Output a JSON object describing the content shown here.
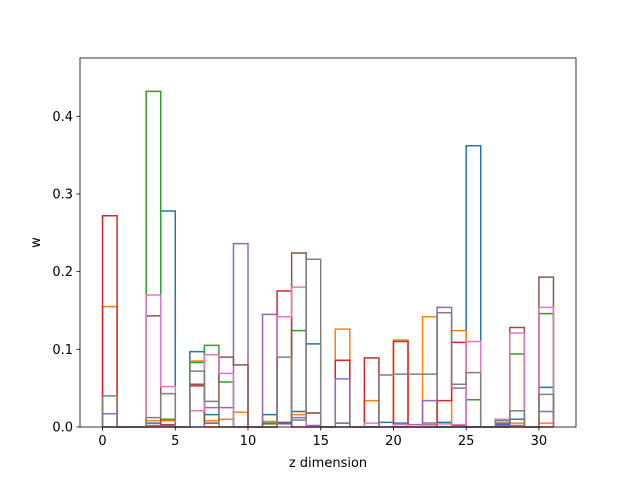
{
  "chart_data": {
    "type": "histogram-step",
    "title": "",
    "xlabel": "z dimension",
    "ylabel": "w",
    "xlim": [
      -1.55,
      32.55
    ],
    "ylim": [
      0,
      0.475
    ],
    "x_ticks": [
      0,
      5,
      10,
      15,
      20,
      25,
      30
    ],
    "y_ticks": [
      0.0,
      0.1,
      0.2,
      0.3,
      0.4
    ],
    "y_tick_labels": [
      "0.0",
      "0.1",
      "0.2",
      "0.3",
      "0.4"
    ],
    "grid": false,
    "legend": "none",
    "bin_edges": [
      0,
      1,
      2,
      3,
      4,
      5,
      6,
      7,
      8,
      9,
      10,
      11,
      12,
      13,
      14,
      15,
      16,
      17,
      18,
      19,
      20,
      21,
      22,
      23,
      24,
      25,
      26,
      27,
      28,
      29,
      30,
      31
    ],
    "series": [
      {
        "color": "#1f77b4",
        "values": [
          0,
          0,
          0,
          0.005,
          0.278,
          0,
          0.097,
          0.016,
          0.01,
          0,
          0,
          0.016,
          0.006,
          0.02,
          0.107,
          0,
          0.005,
          0,
          0,
          0.006,
          0.005,
          0,
          0.003,
          0.006,
          0.002,
          0.362,
          0,
          0.003,
          0.01,
          0,
          0.051
        ]
      },
      {
        "color": "#ff7f0e",
        "values": [
          0.155,
          0,
          0,
          0.008,
          0.008,
          0,
          0.085,
          0.008,
          0.01,
          0.019,
          0,
          0.007,
          0.142,
          0.016,
          0.018,
          0,
          0.126,
          0,
          0.034,
          0,
          0.112,
          0,
          0.142,
          0,
          0.124,
          0,
          0,
          0,
          0.005,
          0,
          0.005
        ]
      },
      {
        "color": "#2ca02c",
        "values": [
          0,
          0,
          0,
          0.432,
          0.01,
          0,
          0.083,
          0.105,
          0.058,
          0,
          0,
          0.005,
          0.005,
          0.124,
          0,
          0,
          0,
          0,
          0,
          0,
          0,
          0,
          0,
          0,
          0,
          0.035,
          0,
          0,
          0.094,
          0,
          0.146
        ]
      },
      {
        "color": "#d62728",
        "values": [
          0.272,
          0,
          0,
          0,
          0,
          0,
          0.053,
          0,
          0,
          0,
          0,
          0,
          0.175,
          0,
          0,
          0,
          0.086,
          0,
          0.089,
          0,
          0.11,
          0,
          0,
          0.034,
          0.109,
          0,
          0,
          0,
          0,
          0,
          0
        ]
      },
      {
        "color": "#9467bd",
        "values": [
          0.017,
          0,
          0,
          0.002,
          0.002,
          0,
          0,
          0.025,
          0.025,
          0.236,
          0,
          0.145,
          0.004,
          0.012,
          0.002,
          0,
          0.062,
          0,
          0,
          0,
          0,
          0.003,
          0.034,
          0.154,
          0.05,
          0,
          0,
          0.002,
          0.002,
          0,
          0.02
        ]
      },
      {
        "color": "#8c564b",
        "values": [
          0,
          0,
          0,
          0.143,
          0.003,
          0,
          0.055,
          0.005,
          0.09,
          0.08,
          0,
          0.004,
          0.005,
          0.224,
          0.018,
          0,
          0,
          0,
          0,
          0,
          0,
          0,
          0.005,
          0,
          0,
          0,
          0,
          0.005,
          0.128,
          0,
          0.193
        ]
      },
      {
        "color": "#e377c2",
        "values": [
          0,
          0,
          0,
          0.17,
          0.052,
          0,
          0.021,
          0.093,
          0.069,
          0,
          0,
          0,
          0.142,
          0.18,
          0,
          0,
          0,
          0,
          0.005,
          0,
          0.003,
          0,
          0.004,
          0.004,
          0.003,
          0.11,
          0,
          0.01,
          0.121,
          0,
          0.154
        ]
      },
      {
        "color": "#7f7f7f",
        "values": [
          0.04,
          0,
          0,
          0.012,
          0.043,
          0,
          0.072,
          0.033,
          0,
          0,
          0,
          0,
          0.09,
          0.009,
          0.216,
          0,
          0.005,
          0,
          0,
          0.067,
          0.068,
          0.068,
          0.068,
          0.147,
          0.055,
          0.07,
          0,
          0.008,
          0.021,
          0,
          0.042
        ]
      }
    ]
  }
}
